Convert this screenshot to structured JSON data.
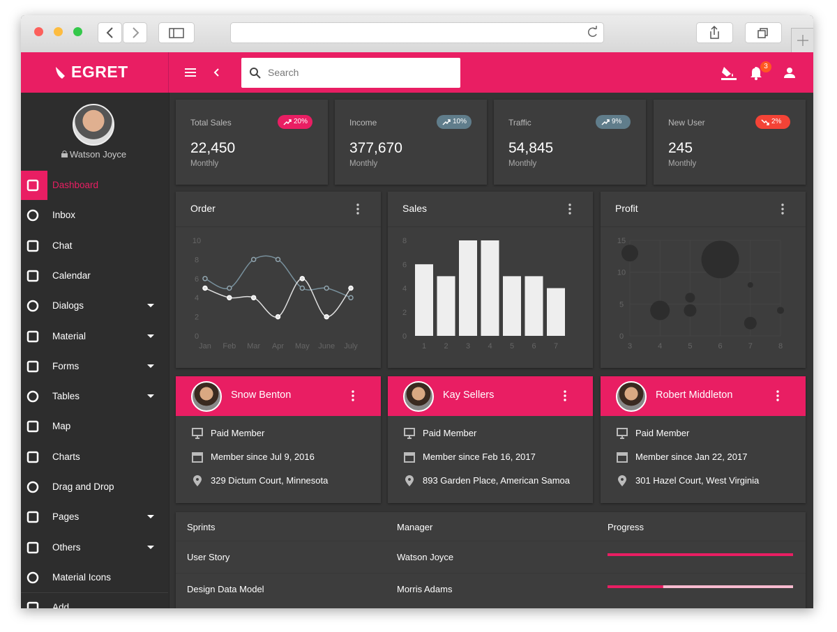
{
  "topbar": {
    "brand": "EGRET",
    "search_placeholder": "Search",
    "notification_count": "3"
  },
  "sidebar": {
    "user": "Watson Joyce",
    "items": [
      {
        "label": "Dashboard",
        "active": true
      },
      {
        "label": "Inbox"
      },
      {
        "label": "Chat"
      },
      {
        "label": "Calendar"
      },
      {
        "label": "Dialogs",
        "submenu": true
      },
      {
        "label": "Material",
        "submenu": true
      },
      {
        "label": "Forms",
        "submenu": true
      },
      {
        "label": "Tables",
        "submenu": true
      },
      {
        "label": "Map"
      },
      {
        "label": "Charts"
      },
      {
        "label": "Drag and Drop"
      },
      {
        "label": "Pages",
        "submenu": true
      },
      {
        "label": "Others",
        "submenu": true
      },
      {
        "label": "Material Icons"
      },
      {
        "label": "Add"
      }
    ]
  },
  "stats": [
    {
      "title": "Total Sales",
      "change": "20%",
      "trend": "up",
      "color": "#e91e63",
      "value": "22,450",
      "period": "Monthly"
    },
    {
      "title": "Income",
      "change": "10%",
      "trend": "up",
      "color": "#607d8b",
      "value": "377,670",
      "period": "Monthly"
    },
    {
      "title": "Traffic",
      "change": "9%",
      "trend": "up",
      "color": "#607d8b",
      "value": "54,845",
      "period": "Monthly"
    },
    {
      "title": "New User",
      "change": "2%",
      "trend": "down",
      "color": "#f44336",
      "value": "245",
      "period": "Monthly"
    }
  ],
  "chart_data": [
    {
      "type": "line",
      "title": "Order",
      "categories": [
        "Jan",
        "Feb",
        "Mar",
        "Apr",
        "May",
        "June",
        "July"
      ],
      "series": [
        {
          "color": "#78909c",
          "values": [
            6,
            5,
            8,
            8,
            5,
            5,
            4
          ]
        },
        {
          "color": "#e0e0e0",
          "values": [
            5,
            4,
            4,
            2,
            6,
            2,
            5
          ]
        }
      ],
      "ylim": [
        0,
        10
      ],
      "yticks": [
        0,
        2,
        4,
        6,
        8,
        10
      ],
      "grid": false
    },
    {
      "type": "bar",
      "title": "Sales",
      "categories": [
        "1",
        "2",
        "3",
        "4",
        "5",
        "6",
        "7"
      ],
      "values": [
        6,
        5,
        8,
        8,
        5,
        5,
        4
      ],
      "color": "#eeeeee",
      "ylim": [
        0,
        8
      ],
      "yticks": [
        0,
        2,
        4,
        6,
        8
      ],
      "grid": false
    },
    {
      "type": "bubble",
      "title": "Profit",
      "x": [
        3,
        4,
        5,
        5,
        6,
        7,
        7,
        8
      ],
      "values": [
        13,
        4,
        6,
        4,
        12,
        8,
        2,
        4
      ],
      "sizes": [
        12,
        14,
        7,
        9,
        27,
        4,
        9,
        5
      ],
      "color": "#2b2b2b",
      "xlim": [
        3,
        8
      ],
      "xticks": [
        3,
        4,
        5,
        6,
        7,
        8
      ],
      "ylim": [
        0,
        15
      ],
      "yticks": [
        0,
        5,
        10,
        15
      ],
      "grid": true
    }
  ],
  "contacts": [
    {
      "name": "Snow Benton",
      "membership": "Paid Member",
      "since": "Member since Jul 9, 2016",
      "address": "329 Dictum Court, Minnesota"
    },
    {
      "name": "Kay Sellers",
      "membership": "Paid Member",
      "since": "Member since Feb 16, 2017",
      "address": "893 Garden Place, American Samoa"
    },
    {
      "name": "Robert Middleton",
      "membership": "Paid Member",
      "since": "Member since Jan 22, 2017",
      "address": "301 Hazel Court, West Virginia"
    }
  ],
  "table": {
    "headers": [
      "Sprints",
      "Manager",
      "Progress"
    ],
    "progress_color": "#e91e63",
    "track_color": "#f8bbd0",
    "rows": [
      {
        "sprint": "User Story",
        "manager": "Watson Joyce",
        "progress": 100
      },
      {
        "sprint": "Design Data Model",
        "manager": "Morris Adams",
        "progress": 30
      }
    ]
  }
}
